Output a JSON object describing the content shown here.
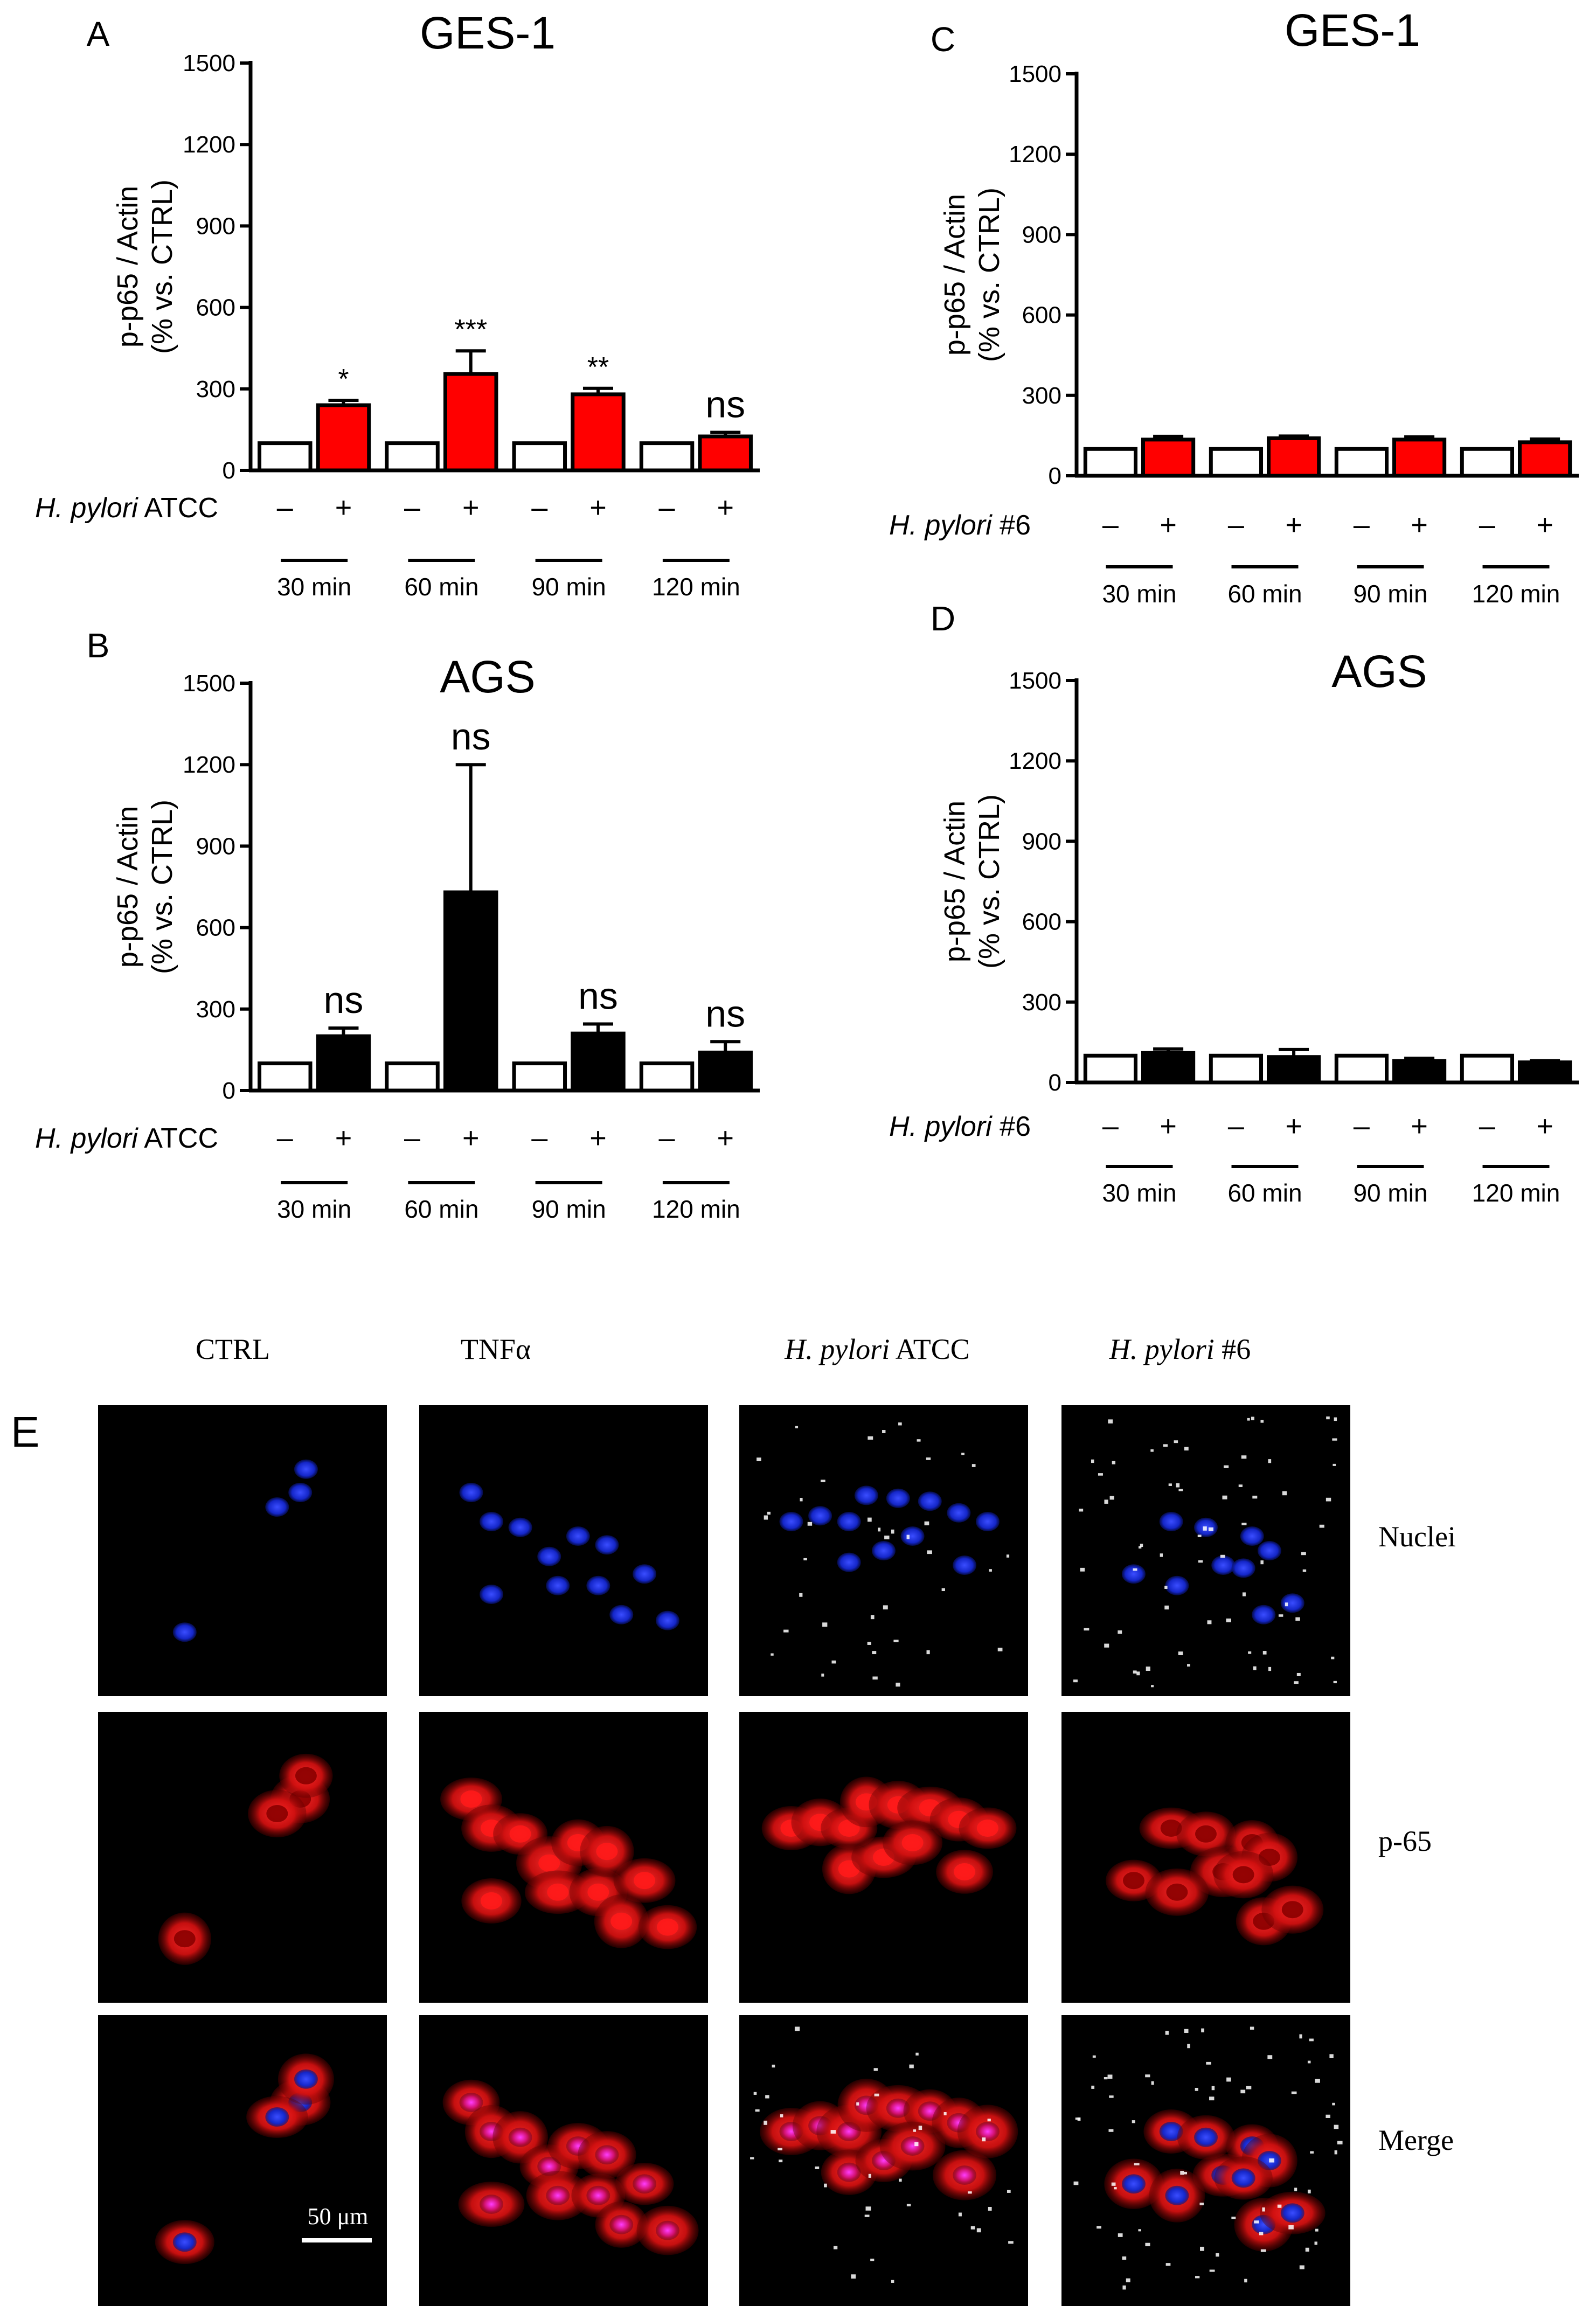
{
  "colors": {
    "red": "#ff0000",
    "black": "#000000",
    "white": "#ffffff",
    "nuclei": "#1a2cff"
  },
  "common": {
    "ylabel1": "p-p65 / Actin",
    "ylabel2": "(% vs. CTRL)",
    "minus": "–",
    "plus": "+",
    "times": [
      "30 min",
      "60 min",
      "90 min",
      "120 min"
    ]
  },
  "chart_data": [
    {
      "id": "A",
      "type": "bar",
      "panel_letter": "A",
      "title": "GES-1",
      "strain_label_italic": "H. pylori",
      "strain_label_rest": " ATCC",
      "ylim": [
        0,
        1500
      ],
      "yticks": [
        0,
        300,
        600,
        900,
        1200,
        1500
      ],
      "fill": "#ff0000",
      "categories": [
        "30 min",
        "60 min",
        "90 min",
        "120 min"
      ],
      "series": [
        {
          "name": "CTRL (–)",
          "values": [
            100,
            100,
            100,
            100
          ]
        },
        {
          "name": "H. pylori ATCC (+)",
          "values": [
            240,
            355,
            280,
            125
          ],
          "errors": [
            18,
            85,
            22,
            15
          ]
        }
      ],
      "annotations": [
        "*",
        "***",
        "**",
        "ns"
      ]
    },
    {
      "id": "B",
      "type": "bar",
      "panel_letter": "B",
      "title": "AGS",
      "strain_label_italic": "H. pylori",
      "strain_label_rest": " ATCC",
      "ylim": [
        0,
        1500
      ],
      "yticks": [
        0,
        300,
        600,
        900,
        1200,
        1500
      ],
      "fill": "#000000",
      "categories": [
        "30 min",
        "60 min",
        "90 min",
        "120 min"
      ],
      "series": [
        {
          "name": "CTRL (–)",
          "values": [
            100,
            100,
            100,
            100
          ]
        },
        {
          "name": "H. pylori ATCC (+)",
          "values": [
            200,
            730,
            210,
            140
          ],
          "errors": [
            30,
            470,
            35,
            40
          ]
        }
      ],
      "annotations": [
        "ns",
        "ns",
        "ns",
        "ns"
      ]
    },
    {
      "id": "C",
      "type": "bar",
      "panel_letter": "C",
      "title": "GES-1",
      "strain_label_italic": "H. pylori",
      "strain_label_rest": " #6",
      "ylim": [
        0,
        1500
      ],
      "yticks": [
        0,
        300,
        600,
        900,
        1200,
        1500
      ],
      "fill": "#ff0000",
      "categories": [
        "30 min",
        "60 min",
        "90 min",
        "120 min"
      ],
      "series": [
        {
          "name": "CTRL (–)",
          "values": [
            100,
            100,
            100,
            100
          ]
        },
        {
          "name": "H. pylori #6 (+)",
          "values": [
            135,
            140,
            135,
            125
          ],
          "errors": [
            12,
            8,
            10,
            12
          ]
        }
      ],
      "annotations": []
    },
    {
      "id": "D",
      "type": "bar",
      "panel_letter": "D",
      "title": "AGS",
      "strain_label_italic": "H. pylori",
      "strain_label_rest": " #6",
      "ylim": [
        0,
        1500
      ],
      "yticks": [
        0,
        300,
        600,
        900,
        1200,
        1500
      ],
      "fill": "#000000",
      "categories": [
        "30 min",
        "60 min",
        "90 min",
        "120 min"
      ],
      "series": [
        {
          "name": "CTRL (–)",
          "values": [
            100,
            100,
            100,
            100
          ]
        },
        {
          "name": "H. pylori #6 (+)",
          "values": [
            110,
            95,
            80,
            75
          ],
          "errors": [
            15,
            28,
            10,
            6
          ]
        }
      ],
      "annotations": []
    }
  ],
  "panel_e": {
    "letter": "E",
    "columns": [
      {
        "label": "CTRL",
        "italic": ""
      },
      {
        "label": "TNFα",
        "italic": ""
      },
      {
        "label": " ATCC",
        "italic": "H. pylori"
      },
      {
        "label": " #6",
        "italic": "H. pylori"
      }
    ],
    "rows": [
      "Nuclei",
      "p-65",
      "Merge"
    ],
    "scale_bar": "50 μm"
  }
}
